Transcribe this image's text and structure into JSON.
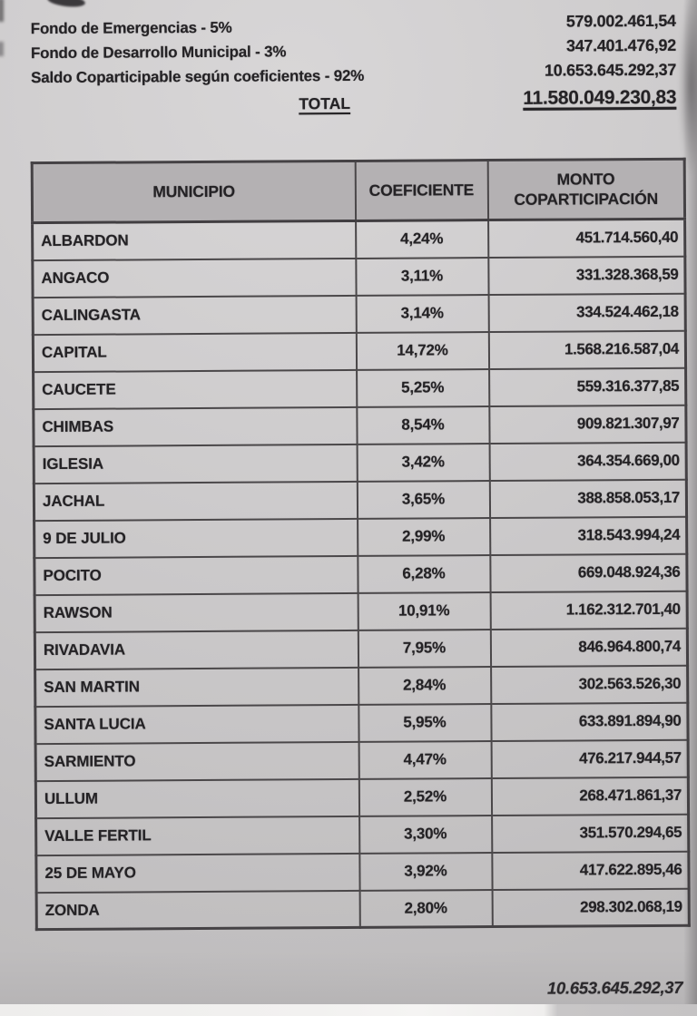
{
  "summary": {
    "lines": [
      {
        "label": "Fondo de Emergencias - 5%",
        "value": "579.002.461,54"
      },
      {
        "label": "Fondo de Desarrollo Municipal - 3%",
        "value": "347.401.476,92"
      },
      {
        "label": "Saldo Coparticipable según coeficientes - 92%",
        "value": "10.653.645.292,37"
      }
    ],
    "total": {
      "label": "TOTAL",
      "value": "11.580.049.230,83"
    }
  },
  "table": {
    "headers": [
      "MUNICIPIO",
      "COEFICIENTE",
      "MONTO COPARTICIPACIÓN"
    ],
    "rows": [
      [
        "ALBARDON",
        "4,24%",
        "451.714.560,40"
      ],
      [
        "ANGACO",
        "3,11%",
        "331.328.368,59"
      ],
      [
        "CALINGASTA",
        "3,14%",
        "334.524.462,18"
      ],
      [
        "CAPITAL",
        "14,72%",
        "1.568.216.587,04"
      ],
      [
        "CAUCETE",
        "5,25%",
        "559.316.377,85"
      ],
      [
        "CHIMBAS",
        "8,54%",
        "909.821.307,97"
      ],
      [
        "IGLESIA",
        "3,42%",
        "364.354.669,00"
      ],
      [
        "JACHAL",
        "3,65%",
        "388.858.053,17"
      ],
      [
        "9 DE JULIO",
        "2,99%",
        "318.543.994,24"
      ],
      [
        "POCITO",
        "6,28%",
        "669.048.924,36"
      ],
      [
        "RAWSON",
        "10,91%",
        "1.162.312.701,40"
      ],
      [
        "RIVADAVIA",
        "7,95%",
        "846.964.800,74"
      ],
      [
        "SAN MARTIN",
        "2,84%",
        "302.563.526,30"
      ],
      [
        "SANTA LUCIA",
        "5,95%",
        "633.891.894,90"
      ],
      [
        "SARMIENTO",
        "4,47%",
        "476.217.944,57"
      ],
      [
        "ULLUM",
        "2,52%",
        "268.471.861,37"
      ],
      [
        "VALLE FERTIL",
        "3,30%",
        "351.570.294,65"
      ],
      [
        "25 DE MAYO",
        "3,92%",
        "417.622.895,46"
      ],
      [
        "ZONDA",
        "2,80%",
        "298.302.068,19"
      ]
    ]
  },
  "footer": {
    "saldo_coparticipable_total": "10.653.645.292,37"
  },
  "colors": {
    "paper": "#cecccd",
    "header_bg": "#b4b1b3",
    "ink": "#242225",
    "table_border": "#4a4749",
    "bottom_edge_white": "#f2f1f0",
    "bottom_edge_gray": "#c5c3c4"
  }
}
